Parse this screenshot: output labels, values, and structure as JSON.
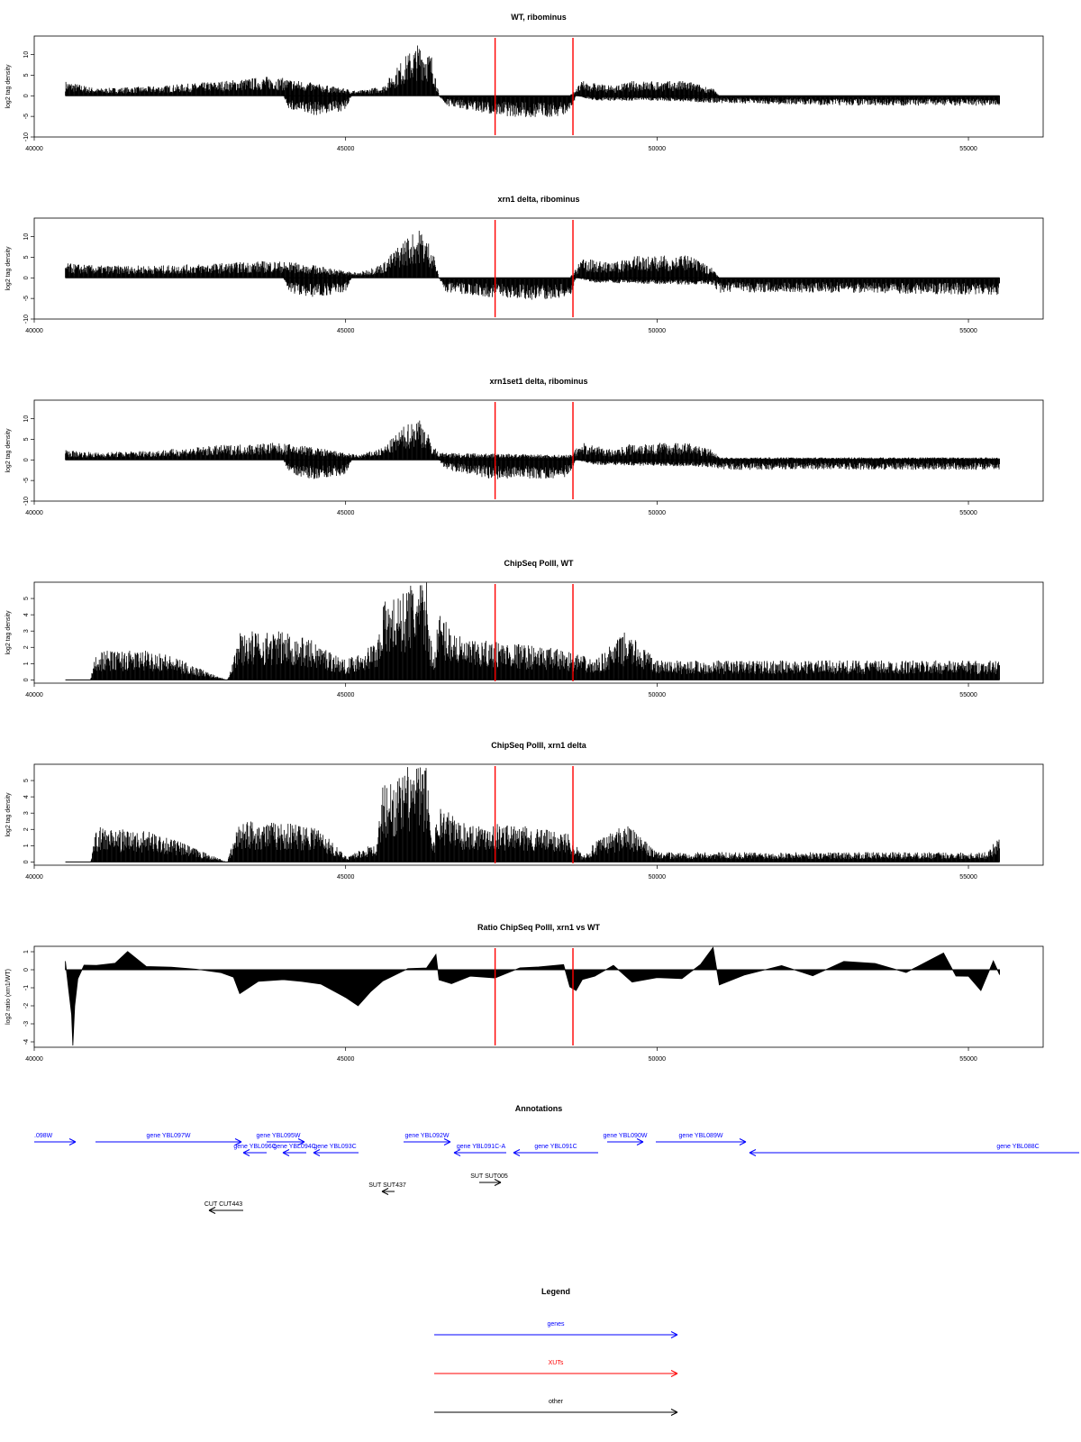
{
  "chart_data": [
    {
      "type": "bar",
      "title": "WT, ribominus",
      "ylabel": "log2 tag density",
      "xlim": [
        40000,
        56200
      ],
      "ylim": [
        -10,
        14.5
      ],
      "yticks": [
        -10,
        -5,
        0,
        5,
        10
      ],
      "xticks": [
        40000,
        45000,
        50000,
        55000
      ],
      "markers_x": [
        47400,
        48650
      ],
      "plus": [
        [
          40500,
          3
        ],
        [
          41000,
          1.5
        ],
        [
          42000,
          2
        ],
        [
          43000,
          3
        ],
        [
          43800,
          4
        ],
        [
          44300,
          3
        ],
        [
          45200,
          1
        ],
        [
          45600,
          2
        ],
        [
          45950,
          8
        ],
        [
          46200,
          11
        ],
        [
          46400,
          8
        ],
        [
          46500,
          0
        ],
        [
          48600,
          0
        ],
        [
          48800,
          3
        ],
        [
          49300,
          2
        ],
        [
          49600,
          3
        ],
        [
          50500,
          3
        ],
        [
          50900,
          1.5
        ],
        [
          51000,
          0
        ],
        [
          55500,
          0
        ]
      ],
      "minus": [
        [
          40500,
          0
        ],
        [
          44000,
          0
        ],
        [
          44100,
          -3
        ],
        [
          44500,
          -4
        ],
        [
          45000,
          -3
        ],
        [
          45100,
          0
        ],
        [
          46500,
          0
        ],
        [
          46600,
          -2
        ],
        [
          47400,
          -4
        ],
        [
          48000,
          -4.5
        ],
        [
          48600,
          -4
        ],
        [
          48700,
          0
        ],
        [
          49000,
          -1
        ],
        [
          50000,
          -1
        ],
        [
          51000,
          -1.5
        ],
        [
          53000,
          -2
        ],
        [
          55500,
          -2
        ]
      ]
    },
    {
      "type": "bar",
      "title": "xrn1 delta, ribominus",
      "ylabel": "log2 tag density",
      "xlim": [
        40000,
        56200
      ],
      "ylim": [
        -10,
        14.5
      ],
      "yticks": [
        -10,
        -5,
        0,
        5,
        10
      ],
      "xticks": [
        40000,
        45000,
        50000,
        55000
      ],
      "markers_x": [
        47400,
        48650
      ],
      "plus": [
        [
          40500,
          3
        ],
        [
          41000,
          2.5
        ],
        [
          42000,
          2.5
        ],
        [
          43000,
          3
        ],
        [
          43800,
          3.5
        ],
        [
          44300,
          3
        ],
        [
          45200,
          1
        ],
        [
          45600,
          3
        ],
        [
          45950,
          8
        ],
        [
          46200,
          10
        ],
        [
          46400,
          6
        ],
        [
          46500,
          0
        ],
        [
          48600,
          0
        ],
        [
          48800,
          4
        ],
        [
          49300,
          3
        ],
        [
          49600,
          4.5
        ],
        [
          50500,
          4.5
        ],
        [
          50900,
          2
        ],
        [
          51000,
          0
        ],
        [
          55500,
          0
        ]
      ],
      "minus": [
        [
          40500,
          0
        ],
        [
          44000,
          0
        ],
        [
          44100,
          -3
        ],
        [
          44500,
          -4
        ],
        [
          45000,
          -3
        ],
        [
          45100,
          0
        ],
        [
          46500,
          0
        ],
        [
          46600,
          -3
        ],
        [
          47400,
          -4
        ],
        [
          48000,
          -4.5
        ],
        [
          48600,
          -4
        ],
        [
          48700,
          0
        ],
        [
          49000,
          -1
        ],
        [
          50900,
          -1.5
        ],
        [
          51000,
          -3
        ],
        [
          53000,
          -3
        ],
        [
          55500,
          -3.5
        ]
      ]
    },
    {
      "type": "bar",
      "title": "xrn1set1 delta, ribominus",
      "ylabel": "log2 tag density",
      "xlim": [
        40000,
        56200
      ],
      "ylim": [
        -10,
        14.5
      ],
      "yticks": [
        -10,
        -5,
        0,
        5,
        10
      ],
      "xticks": [
        40000,
        45000,
        50000,
        55000
      ],
      "markers_x": [
        47400,
        48650
      ],
      "plus": [
        [
          40500,
          2
        ],
        [
          41000,
          1.5
        ],
        [
          42000,
          2
        ],
        [
          43000,
          3
        ],
        [
          43800,
          3.5
        ],
        [
          44300,
          3
        ],
        [
          45200,
          1
        ],
        [
          45600,
          2.5
        ],
        [
          45950,
          7
        ],
        [
          46200,
          9
        ],
        [
          46400,
          3
        ],
        [
          46500,
          1.5
        ],
        [
          48600,
          1
        ],
        [
          48800,
          3.5
        ],
        [
          49300,
          2
        ],
        [
          49600,
          3.5
        ],
        [
          50500,
          3.5
        ],
        [
          50900,
          2
        ],
        [
          51000,
          0.5
        ],
        [
          55500,
          0.5
        ]
      ],
      "minus": [
        [
          40500,
          0
        ],
        [
          44000,
          0
        ],
        [
          44100,
          -3
        ],
        [
          44500,
          -4
        ],
        [
          45000,
          -3
        ],
        [
          45100,
          0
        ],
        [
          46500,
          0
        ],
        [
          46600,
          -2
        ],
        [
          47400,
          -4
        ],
        [
          48000,
          -4
        ],
        [
          48600,
          -3.5
        ],
        [
          48700,
          0
        ],
        [
          49000,
          -1
        ],
        [
          50900,
          -1.5
        ],
        [
          51000,
          -2
        ],
        [
          53000,
          -2
        ],
        [
          55500,
          -2
        ]
      ]
    },
    {
      "type": "bar",
      "title": "ChipSeq PolII, WT",
      "ylabel": "log2 tag density",
      "xlim": [
        40000,
        56200
      ],
      "ylim": [
        -0.2,
        6
      ],
      "yticks": [
        0,
        1,
        2,
        3,
        4,
        5
      ],
      "xticks": [
        40000,
        45000,
        50000,
        55000
      ],
      "markers_x": [
        47400,
        48650
      ],
      "plus": [
        [
          40500,
          0
        ],
        [
          40900,
          0
        ],
        [
          41000,
          1.5
        ],
        [
          42000,
          1.5
        ],
        [
          43100,
          0
        ],
        [
          43300,
          2.5
        ],
        [
          44000,
          2.5
        ],
        [
          44500,
          2
        ],
        [
          45000,
          1
        ],
        [
          45500,
          2
        ],
        [
          45600,
          4
        ],
        [
          45950,
          4.5
        ],
        [
          46000,
          5
        ],
        [
          46300,
          5
        ],
        [
          46400,
          1
        ],
        [
          46500,
          3.5
        ],
        [
          46900,
          2
        ],
        [
          47500,
          2
        ],
        [
          48600,
          1.5
        ],
        [
          49000,
          1
        ],
        [
          49500,
          2.5
        ],
        [
          50000,
          1
        ],
        [
          51000,
          1
        ],
        [
          52000,
          1
        ],
        [
          53000,
          1
        ],
        [
          55500,
          1
        ]
      ],
      "minus": []
    },
    {
      "type": "bar",
      "title": "ChipSeq PolII, xrn1 delta",
      "ylabel": "log2 tag density",
      "xlim": [
        40000,
        56200
      ],
      "ylim": [
        -0.2,
        6
      ],
      "yticks": [
        0,
        1,
        2,
        3,
        4,
        5
      ],
      "xticks": [
        40000,
        45000,
        50000,
        55000
      ],
      "markers_x": [
        47400,
        48650
      ],
      "plus": [
        [
          40500,
          0
        ],
        [
          40900,
          0
        ],
        [
          41000,
          1.8
        ],
        [
          42000,
          1.5
        ],
        [
          43100,
          0
        ],
        [
          43300,
          2.2
        ],
        [
          44000,
          2
        ],
        [
          44500,
          2
        ],
        [
          45000,
          0.3
        ],
        [
          45500,
          1
        ],
        [
          45600,
          4
        ],
        [
          45950,
          4.5
        ],
        [
          46000,
          5
        ],
        [
          46300,
          5
        ],
        [
          46400,
          1
        ],
        [
          46500,
          3
        ],
        [
          46900,
          2
        ],
        [
          47500,
          2
        ],
        [
          48600,
          1.5
        ],
        [
          48800,
          0.3
        ],
        [
          49000,
          1
        ],
        [
          49500,
          2
        ],
        [
          50000,
          0.5
        ],
        [
          52000,
          0.5
        ],
        [
          55300,
          0.5
        ],
        [
          55500,
          1.5
        ]
      ],
      "minus": []
    },
    {
      "type": "area",
      "title": "Ratio ChipSeq PolII, xrn1 vs WT",
      "ylabel": "log2 ratio (xrn1/WT)",
      "xlim": [
        40000,
        56200
      ],
      "ylim": [
        -4.3,
        1.3
      ],
      "yticks": [
        -4,
        -3,
        -2,
        -1,
        0,
        1
      ],
      "xticks": [
        40000,
        45000,
        50000,
        55000
      ],
      "markers_x": [
        47400,
        48650
      ],
      "x": [
        40500,
        40550,
        40600,
        40620,
        40650,
        40700,
        40800,
        41000,
        41300,
        41500,
        41800,
        42200,
        42600,
        43000,
        43200,
        43300,
        43600,
        44000,
        44300,
        44600,
        45000,
        45200,
        45400,
        45600,
        46000,
        46300,
        46450,
        46500,
        46700,
        47000,
        47400,
        47800,
        48100,
        48500,
        48600,
        48700,
        48800,
        49000,
        49300,
        49600,
        50000,
        50400,
        50700,
        50900,
        51000,
        51400,
        52000,
        52500,
        53000,
        53500,
        54000,
        54400,
        54600,
        54800,
        55000,
        55200,
        55400,
        55500
      ],
      "y": [
        0.5,
        -1,
        -2.5,
        -4.2,
        -2,
        -0.5,
        0.2,
        0.3,
        0.4,
        1,
        0.2,
        0.2,
        0,
        -0.2,
        -0.4,
        -1.3,
        -0.7,
        -0.5,
        -0.7,
        -0.8,
        -1.5,
        -2,
        -1.2,
        -0.6,
        0.1,
        0.1,
        0.8,
        -0.5,
        -0.8,
        -0.4,
        -0.4,
        0.1,
        0.1,
        0.3,
        -1,
        -1.2,
        -0.6,
        -0.4,
        0.3,
        -0.7,
        -0.4,
        -0.5,
        0.3,
        1.2,
        -0.8,
        -0.3,
        0.2,
        -0.3,
        0.5,
        0.3,
        -0.2,
        0.6,
        0.9,
        -0.3,
        -0.4,
        -1.1,
        0.5,
        -0.3
      ]
    }
  ],
  "annotations": {
    "title": "Annotations",
    "genes": [
      {
        "label": ".098W"
      },
      {
        "label": "gene YBL097W"
      },
      {
        "label": "gene YBL095W"
      },
      {
        "label": "gene YBL096C"
      },
      {
        "label": "gene YBL094C"
      },
      {
        "label": "gene YBL093C"
      },
      {
        "label": "gene YBL092W"
      },
      {
        "label": "gene YBL091C-A"
      },
      {
        "label": "gene YBL091C"
      },
      {
        "label": "gene YBL090W"
      },
      {
        "label": "gene YBL089W"
      },
      {
        "label": "gene YBL088C"
      }
    ],
    "others": [
      {
        "label": "SUT SUT437"
      },
      {
        "label": "SUT SUT005"
      },
      {
        "label": "CUT CUT443"
      }
    ]
  },
  "legend": {
    "title": "Legend",
    "items": [
      {
        "label": "genes",
        "color": "#0000ff"
      },
      {
        "label": "XUTs",
        "color": "#ff0000"
      },
      {
        "label": "other",
        "color": "#000000"
      }
    ]
  }
}
